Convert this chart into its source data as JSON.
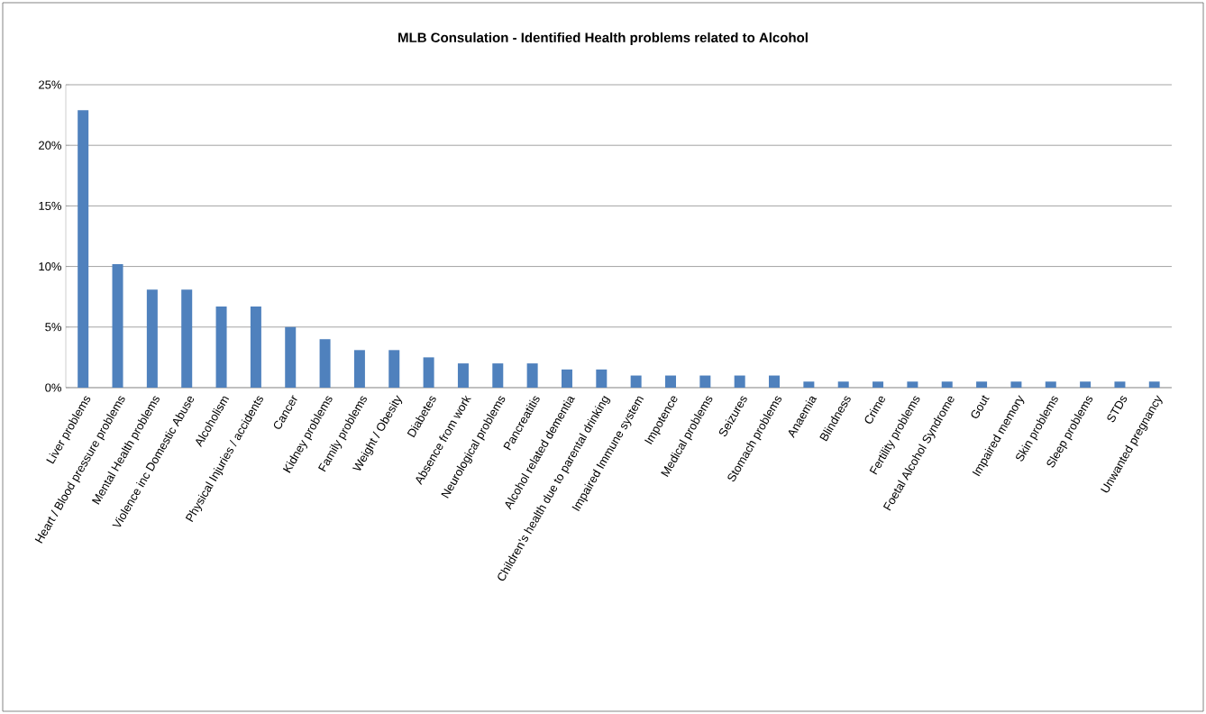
{
  "chart_data": {
    "type": "bar",
    "title": "MLB Consulation - Identified Health problems related to Alcohol",
    "categories": [
      "Liver problems",
      "Heart / Blood pressure problems",
      "Mental Health problems",
      "Violence inc Domestic Abuse",
      "Alcoholism",
      "Physical Injuries / accidents",
      "Cancer",
      "Kidney problems",
      "Family problems",
      "Weight / Obesity",
      "Diabetes",
      "Absence from work",
      "Neurological problems",
      "Pancreatitis",
      "Alcohol related dementia",
      "Children's health due to parental drinking",
      "Impaired Immune system",
      "Impotence",
      "Medical problems",
      "Seizures",
      "Stomach problems",
      "Anaemia",
      "Blindness",
      "Crime",
      "Fertility problems",
      "Foetal Alcohol Syndrome",
      "Gout",
      "Impaired memory",
      "Skin problems",
      "Sleep problems",
      "STDs",
      "Unwanted pregnancy"
    ],
    "values": [
      22.9,
      10.2,
      8.1,
      8.1,
      6.7,
      6.7,
      5.0,
      4.0,
      3.1,
      3.1,
      2.5,
      2.0,
      2.0,
      2.0,
      1.5,
      1.5,
      1.0,
      1.0,
      1.0,
      1.0,
      1.0,
      0.5,
      0.5,
      0.5,
      0.5,
      0.5,
      0.5,
      0.5,
      0.5,
      0.5,
      0.5,
      0.5
    ],
    "color": "#4f81bd",
    "ylim": [
      0,
      25
    ],
    "yticks": [
      {
        "value": 0,
        "label": "0%"
      },
      {
        "value": 5,
        "label": "5%"
      },
      {
        "value": 10,
        "label": "10%"
      },
      {
        "value": 15,
        "label": "15%"
      },
      {
        "value": 20,
        "label": "20%"
      },
      {
        "value": 25,
        "label": "25%"
      }
    ],
    "grid": "y"
  }
}
